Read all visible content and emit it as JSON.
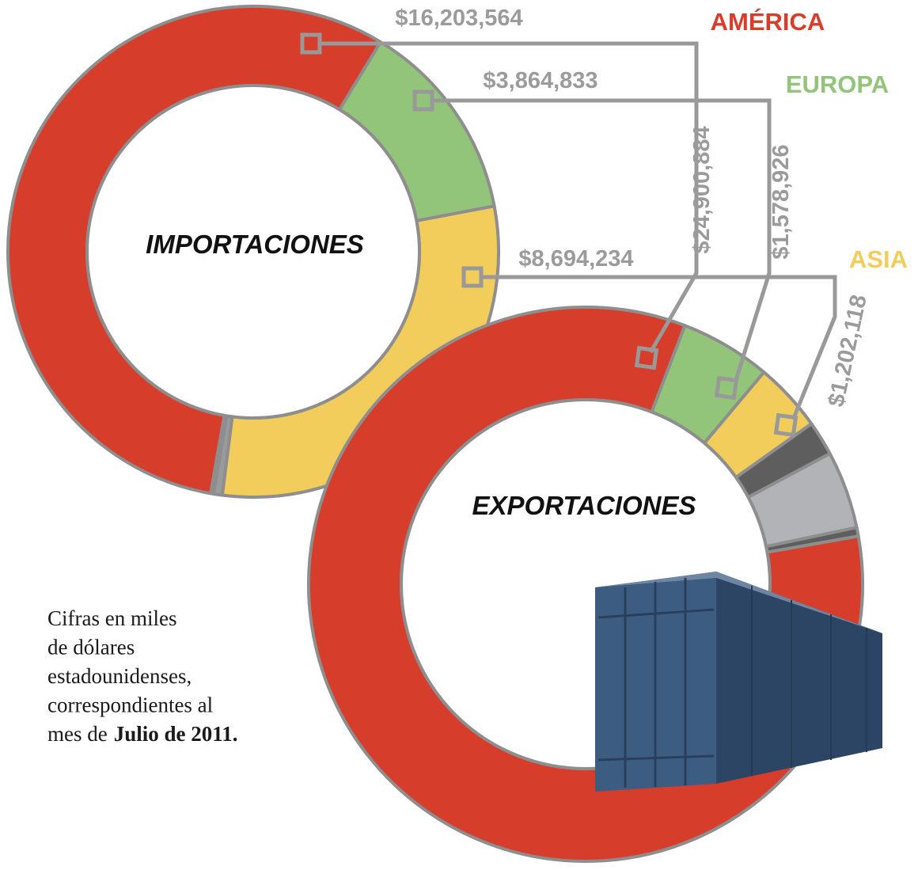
{
  "legend": [
    {
      "name": "AMÉRICA",
      "color": "#d63d2a"
    },
    {
      "name": "EUROPA",
      "color": "#92c479"
    },
    {
      "name": "ASIA",
      "color": "#f2cd5b"
    }
  ],
  "chart_data": [
    {
      "type": "donut",
      "title": "IMPORTACIONES",
      "values": [
        16203564,
        3864833,
        8694234,
        160000,
        60000
      ],
      "value_labels": [
        "$16,203,564",
        "$3,864,833",
        "$8,694,234",
        null,
        null
      ],
      "colors": [
        "#d63d2a",
        "#92c479",
        "#f2cd5b",
        "#9a9a9a",
        "#555555"
      ]
    },
    {
      "type": "donut",
      "title": "EXPORTACIONES",
      "values": [
        24900884,
        1578926,
        1202118,
        600000,
        1350000,
        150000
      ],
      "value_labels": [
        "$24,900,884",
        "$1,578,926",
        "$1,202,118",
        null,
        null,
        null
      ],
      "colors": [
        "#d63d2a",
        "#92c479",
        "#f2cd5b",
        "#5e5e5e",
        "#b1b3b6",
        "#5e5e5e"
      ]
    }
  ],
  "note": {
    "lines": [
      "Cifras en miles",
      "de dólares",
      "estadounidenses,",
      "correspondientes al",
      "mes de"
    ],
    "emphasis": "Julio de 2011."
  }
}
